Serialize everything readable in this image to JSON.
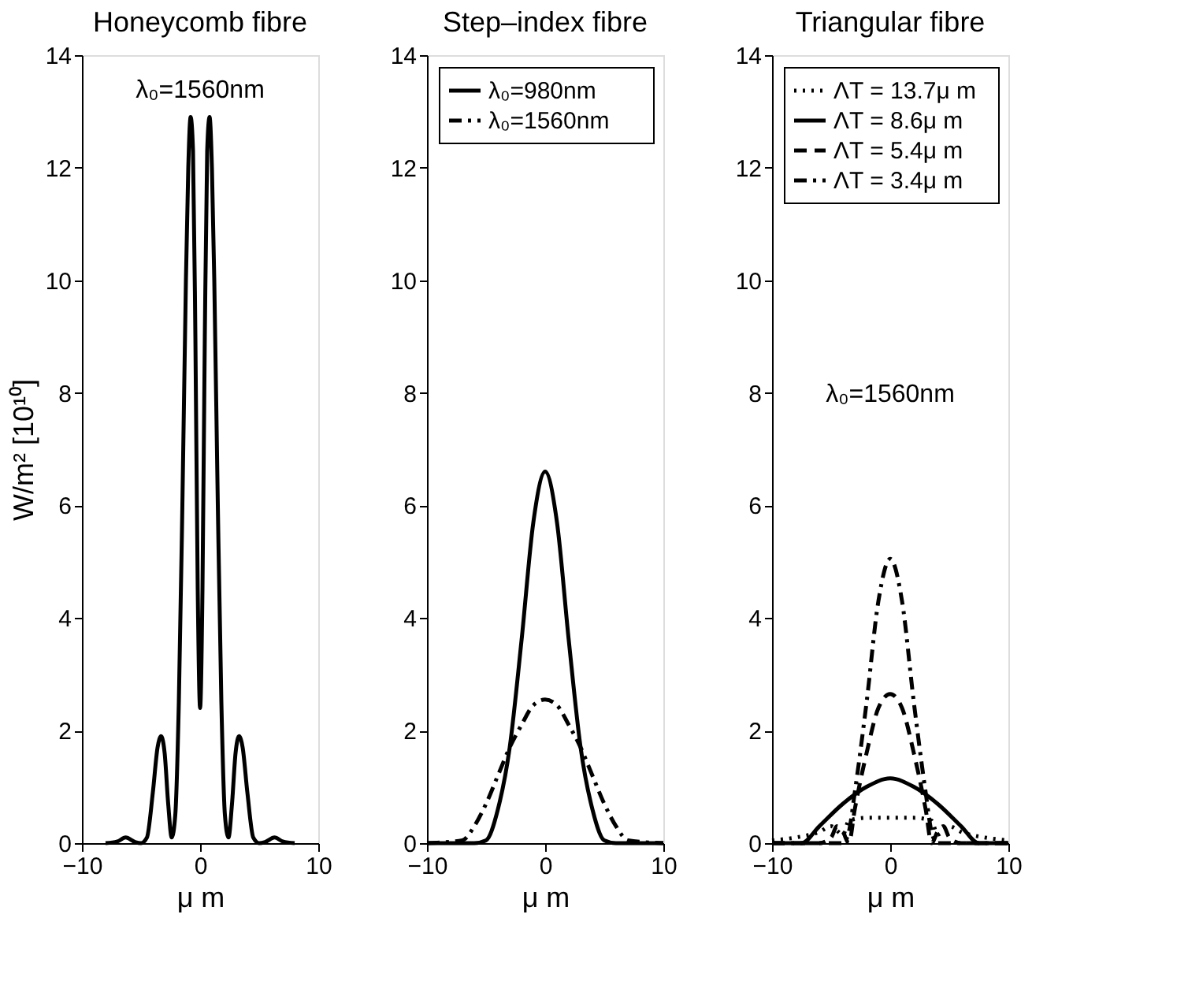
{
  "chart_data": [
    {
      "type": "line",
      "title": "Honeycomb fibre",
      "xlabel": "μ m",
      "ylabel": "W/m² [10¹⁰]",
      "xlim": [
        -10,
        10
      ],
      "xticks": [
        -10,
        0,
        10
      ],
      "ylim": [
        0,
        14
      ],
      "yticks": [
        0,
        2,
        4,
        6,
        8,
        10,
        12,
        14
      ],
      "grid": false,
      "legend": false,
      "annotations": [
        "λ₀=1560nm"
      ],
      "series": [
        {
          "color": "#000000",
          "line_style": "solid",
          "x": [
            -8,
            -7,
            -6.3,
            -5.5,
            -5,
            -4.5,
            -4,
            -3.6,
            -3.3,
            -3,
            -2.7,
            -2.4,
            -2.1,
            -1.8,
            -1.5,
            -1.2,
            -1,
            -0.8,
            -0.6,
            -0.4,
            -0.2,
            0,
            0.2,
            0.4,
            0.6,
            0.8,
            1,
            1.2,
            1.5,
            1.8,
            2.1,
            2.4,
            2.7,
            3,
            3.3,
            3.6,
            4,
            4.5,
            5,
            5.5,
            6.3,
            7,
            8
          ],
          "values": [
            0,
            0.03,
            0.1,
            0.02,
            0,
            0.1,
            0.9,
            1.7,
            1.9,
            1.6,
            0.7,
            0.1,
            0.5,
            2.5,
            6,
            10,
            12,
            12.9,
            12.3,
            9,
            4.5,
            2.4,
            4.5,
            9,
            12.3,
            12.9,
            12,
            10,
            6,
            2.5,
            0.5,
            0.1,
            0.7,
            1.6,
            1.9,
            1.7,
            0.9,
            0.1,
            0,
            0.02,
            0.1,
            0.03,
            0
          ]
        }
      ]
    },
    {
      "type": "line",
      "title": "Step–index fibre",
      "xlabel": "μ m",
      "xlim": [
        -10,
        10
      ],
      "xticks": [
        -10,
        0,
        10
      ],
      "ylim": [
        0,
        14
      ],
      "yticks": [
        0,
        2,
        4,
        6,
        8,
        10,
        12,
        14
      ],
      "grid": false,
      "legend": "top left",
      "series": [
        {
          "name": "λ₀=980nm",
          "color": "#000000",
          "line_style": "solid",
          "x": [
            -10,
            -6,
            -5,
            -4,
            -3,
            -2,
            -1,
            0,
            1,
            2,
            3,
            4,
            5,
            6,
            10
          ],
          "values": [
            0,
            0,
            0.05,
            0.6,
            1.7,
            3.6,
            5.7,
            6.6,
            5.7,
            3.6,
            1.7,
            0.6,
            0.05,
            0,
            0
          ]
        },
        {
          "name": "λ₀=1560nm",
          "color": "#000000",
          "line_style": "dashdot",
          "x": [
            -10,
            -7,
            -6,
            -5,
            -4,
            -3,
            -2,
            -1,
            0,
            1,
            2,
            3,
            4,
            5,
            6,
            7,
            10
          ],
          "values": [
            0,
            0.05,
            0.3,
            0.7,
            1.2,
            1.7,
            2.1,
            2.45,
            2.55,
            2.45,
            2.1,
            1.7,
            1.2,
            0.7,
            0.3,
            0.05,
            0
          ]
        }
      ]
    },
    {
      "type": "line",
      "title": "Triangular fibre",
      "xlabel": "μ m",
      "xlim": [
        -10,
        10
      ],
      "xticks": [
        -10,
        0,
        10
      ],
      "ylim": [
        0,
        14
      ],
      "yticks": [
        0,
        2,
        4,
        6,
        8,
        10,
        12,
        14
      ],
      "grid": false,
      "legend": "top left",
      "annotations": [
        "λ₀=1560nm"
      ],
      "series": [
        {
          "name": "ΛT = 13.7μ m",
          "color": "#000000",
          "line_style": "dotted",
          "x": [
            -10,
            -8,
            -6,
            -5,
            -4,
            -3.5,
            -2,
            0,
            2,
            3.5,
            4,
            5,
            6,
            8,
            10
          ],
          "values": [
            0.05,
            0.1,
            0.2,
            0.3,
            0.15,
            0.4,
            0.45,
            0.45,
            0.45,
            0.4,
            0.15,
            0.3,
            0.2,
            0.1,
            0.05
          ]
        },
        {
          "name": "ΛT = 8.6μ m",
          "color": "#000000",
          "line_style": "solid",
          "x": [
            -10,
            -7.5,
            -6,
            -4,
            -2,
            0,
            2,
            4,
            6,
            7.5,
            10
          ],
          "values": [
            0,
            0,
            0.3,
            0.7,
            1.0,
            1.15,
            1.0,
            0.7,
            0.3,
            0,
            0
          ]
        },
        {
          "name": "ΛT = 5.4μ m",
          "color": "#000000",
          "line_style": "dashed",
          "x": [
            -10,
            -6,
            -5,
            -4.5,
            -4,
            -3.5,
            -3,
            -2,
            -1,
            0,
            1,
            2,
            3,
            3.5,
            4,
            4.5,
            5,
            6,
            10
          ],
          "values": [
            0,
            0,
            0.1,
            0.3,
            0.2,
            0,
            0.6,
            1.6,
            2.4,
            2.65,
            2.4,
            1.6,
            0.6,
            0,
            0.2,
            0.3,
            0.1,
            0,
            0
          ]
        },
        {
          "name": "ΛT = 3.4μ m",
          "color": "#000000",
          "line_style": "dashdot",
          "x": [
            -10,
            -4,
            -3.5,
            -3,
            -2,
            -1,
            0,
            1,
            2,
            3,
            3.5,
            4,
            10
          ],
          "values": [
            0,
            0,
            0.2,
            0.9,
            2.5,
            4.3,
            5.05,
            4.3,
            2.5,
            0.9,
            0.2,
            0,
            0
          ]
        }
      ]
    }
  ]
}
